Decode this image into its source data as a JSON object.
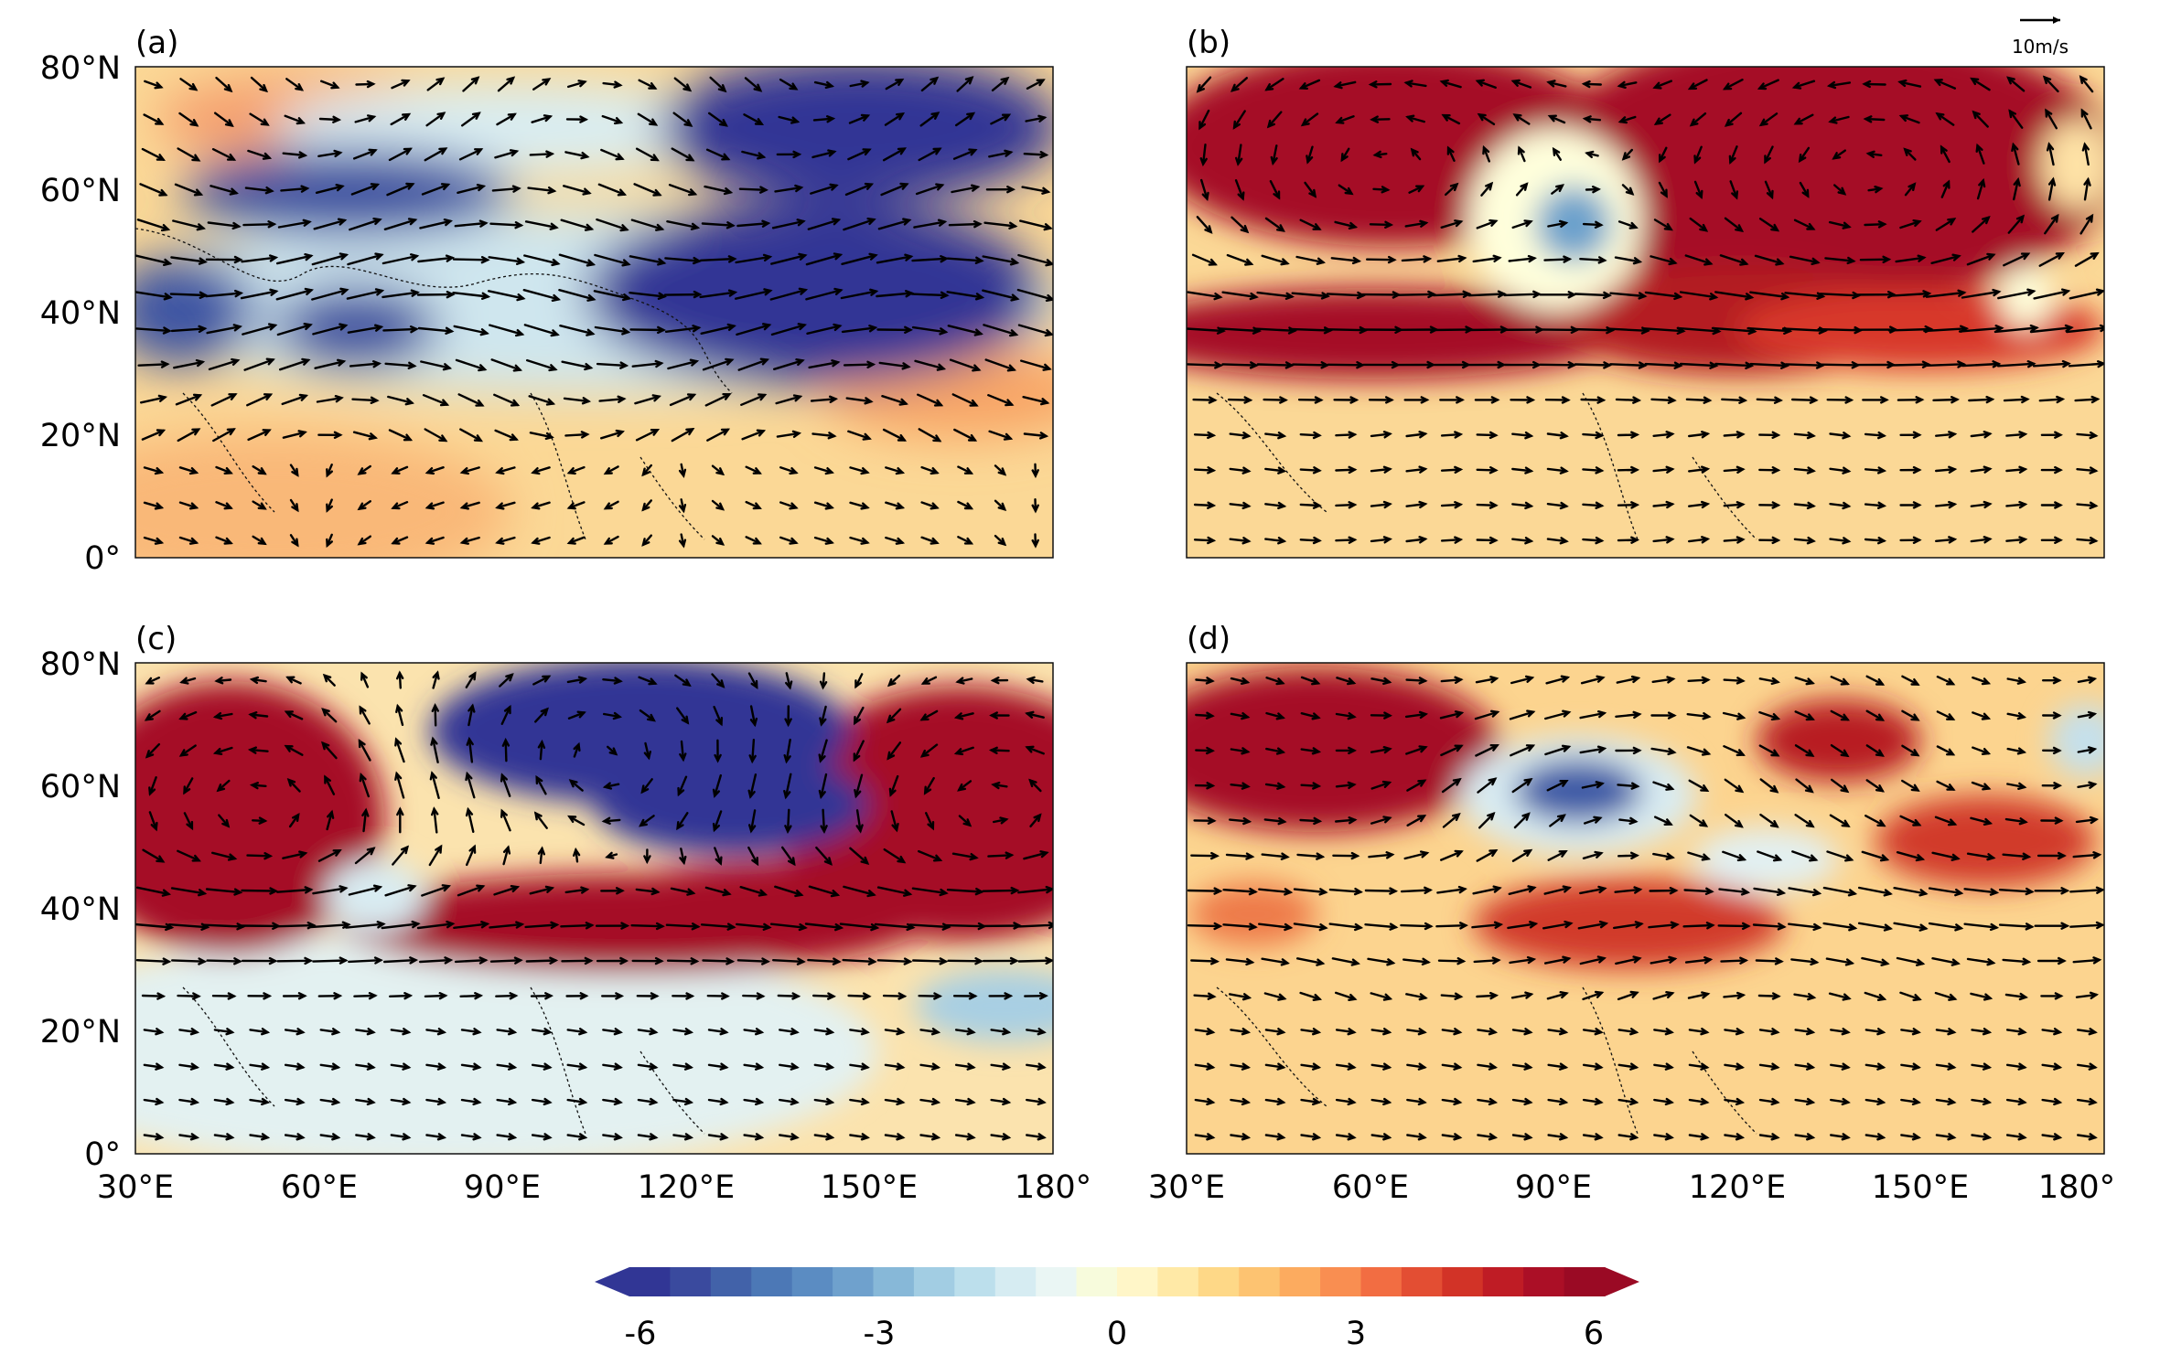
{
  "figure": {
    "panels": [
      {
        "label": "(a)",
        "pattern": "a"
      },
      {
        "label": "(b)",
        "pattern": "b"
      },
      {
        "label": "(c)",
        "pattern": "c"
      },
      {
        "label": "(d)",
        "pattern": "d"
      }
    ],
    "lat_ticks": [
      "80°N",
      "60°N",
      "40°N",
      "20°N",
      "0°"
    ],
    "lon_ticks": [
      "30°E",
      "60°E",
      "90°E",
      "120°E",
      "150°E",
      "180°"
    ],
    "lon_range": [
      30,
      180
    ],
    "lat_range": [
      0,
      80
    ],
    "reference_vector": {
      "label": "10m/s"
    }
  },
  "colorbar": {
    "ticks": [
      "-6",
      "-3",
      "0",
      "3",
      "6"
    ],
    "range": [
      -6,
      6
    ],
    "levels": 24,
    "extend": "both",
    "colors": [
      "#313695",
      "#3a4a9e",
      "#4262a9",
      "#4c78b6",
      "#5b8cc2",
      "#6fa1cd",
      "#87b8d8",
      "#a2cde3",
      "#bcdfec",
      "#d6ecf2",
      "#eaf6f4",
      "#f7fbdc",
      "#fff6c8",
      "#ffe9a6",
      "#fed887",
      "#fdc371",
      "#fcab5f",
      "#f98e51",
      "#f26d42",
      "#e34e33",
      "#d23327",
      "#bf1c25",
      "#ab0f26",
      "#9a0a24"
    ]
  }
}
